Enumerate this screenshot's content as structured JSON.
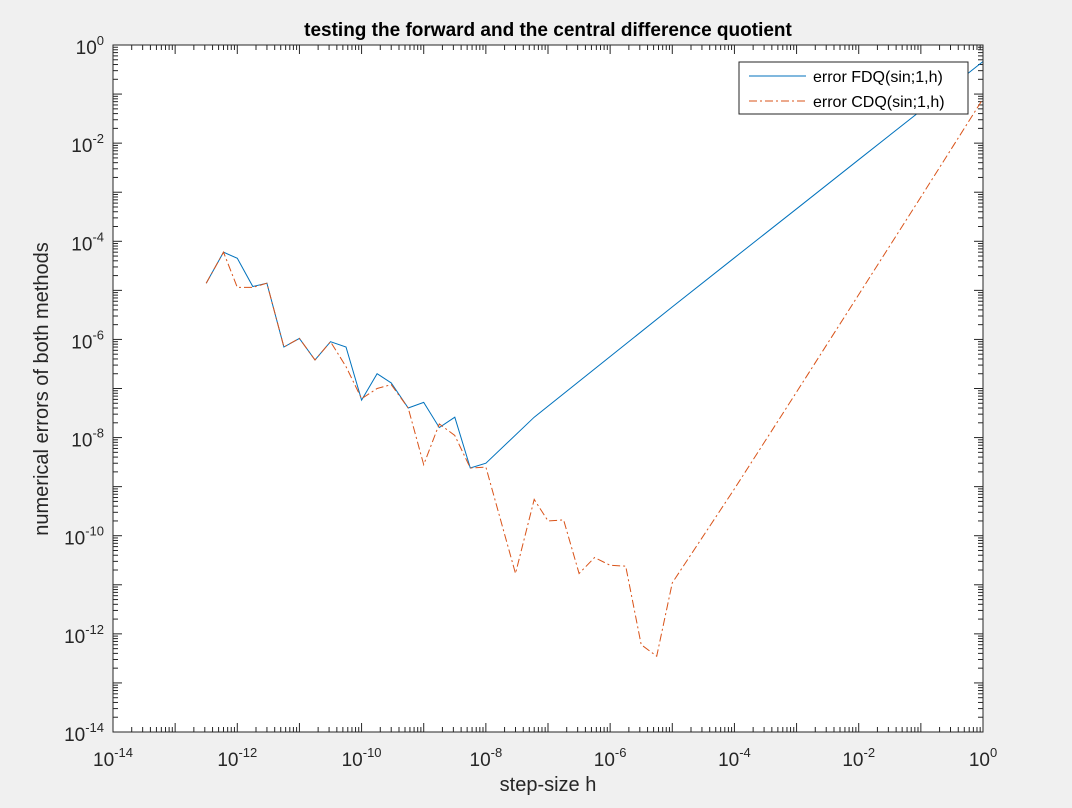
{
  "chart_data": {
    "type": "line",
    "title": "testing the forward and the central difference quotient",
    "xlabel": "step-size h",
    "ylabel": "numerical errors of both methods",
    "xscale": "log",
    "yscale": "log",
    "xlim": [
      1e-14,
      1
    ],
    "ylim": [
      1e-14,
      1
    ],
    "grid": false,
    "legend_position": "top-right",
    "x_ticks": [
      {
        "base": "10",
        "exp": "-14",
        "value": 1e-14
      },
      {
        "base": "10",
        "exp": "-12",
        "value": 1e-12
      },
      {
        "base": "10",
        "exp": "-10",
        "value": 1e-10
      },
      {
        "base": "10",
        "exp": "-8",
        "value": 1e-08
      },
      {
        "base": "10",
        "exp": "-6",
        "value": 1e-06
      },
      {
        "base": "10",
        "exp": "-4",
        "value": 0.0001
      },
      {
        "base": "10",
        "exp": "-2",
        "value": 0.01
      },
      {
        "base": "10",
        "exp": "0",
        "value": 1
      }
    ],
    "y_ticks": [
      {
        "base": "10",
        "exp": "-14",
        "value": 1e-14
      },
      {
        "base": "10",
        "exp": "-12",
        "value": 1e-12
      },
      {
        "base": "10",
        "exp": "-10",
        "value": 1e-10
      },
      {
        "base": "10",
        "exp": "-8",
        "value": 1e-08
      },
      {
        "base": "10",
        "exp": "-6",
        "value": 1e-06
      },
      {
        "base": "10",
        "exp": "-4",
        "value": 0.0001
      },
      {
        "base": "10",
        "exp": "-2",
        "value": 0.01
      },
      {
        "base": "10",
        "exp": "0",
        "value": 1
      }
    ],
    "series": [
      {
        "name": "error FDQ(sin;1,h)",
        "color": "#0072bd",
        "line_style": "solid",
        "x": [
          3.16e-13,
          6e-13,
          1e-12,
          1.78e-12,
          3e-12,
          5.62e-12,
          1e-11,
          1.78e-11,
          3.16e-11,
          5.62e-11,
          1e-10,
          1.78e-10,
          3e-10,
          5.62e-10,
          1e-09,
          1.78e-09,
          3.16e-09,
          5.62e-09,
          1e-08,
          6e-08,
          1e-05,
          0.0001,
          0.001,
          0.01,
          0.1,
          1
        ],
        "y": [
          1.4e-05,
          6e-05,
          4.5e-05,
          1.2e-05,
          1.4e-05,
          7e-07,
          1.05e-06,
          3.8e-07,
          9e-07,
          7e-07,
          5.8e-08,
          2e-07,
          1.3e-07,
          4e-08,
          5.2e-08,
          1.6e-08,
          2.6e-08,
          2.4e-09,
          3e-09,
          2.6e-08,
          4.6e-06,
          4.6e-05,
          0.00046,
          0.0046,
          0.046,
          0.46
        ]
      },
      {
        "name": "error CDQ(sin;1,h)",
        "color": "#d95319",
        "line_style": "dash-dot",
        "x": [
          3.16e-13,
          6e-13,
          1e-12,
          1.78e-12,
          3e-12,
          5.62e-12,
          1e-11,
          1.78e-11,
          3.16e-11,
          5.62e-11,
          1e-10,
          1.78e-10,
          3e-10,
          5.62e-10,
          1e-09,
          1.78e-09,
          3.16e-09,
          5.62e-09,
          1e-08,
          3e-08,
          6e-08,
          1e-07,
          1.78e-07,
          3.16e-07,
          5.62e-07,
          1e-06,
          1.78e-06,
          3.16e-06,
          5.62e-06,
          1e-05,
          0.0001,
          0.001,
          0.01,
          0.1,
          1
        ],
        "y": [
          1.4e-05,
          6e-05,
          1.15e-05,
          1.15e-05,
          1.4e-05,
          7e-07,
          1.05e-06,
          3.8e-07,
          9e-07,
          2.8e-07,
          6.2e-08,
          1e-07,
          1.2e-07,
          4e-08,
          2.8e-09,
          1.9e-08,
          1.1e-08,
          2.4e-09,
          2.5e-09,
          1.7e-11,
          5.5e-10,
          2e-10,
          2.1e-10,
          1.7e-11,
          3.6e-11,
          2.5e-11,
          2.4e-11,
          6e-13,
          3.5e-13,
          1.1e-11,
          9e-10,
          8.5e-08,
          8.2e-06,
          0.0008,
          0.08
        ]
      }
    ]
  }
}
